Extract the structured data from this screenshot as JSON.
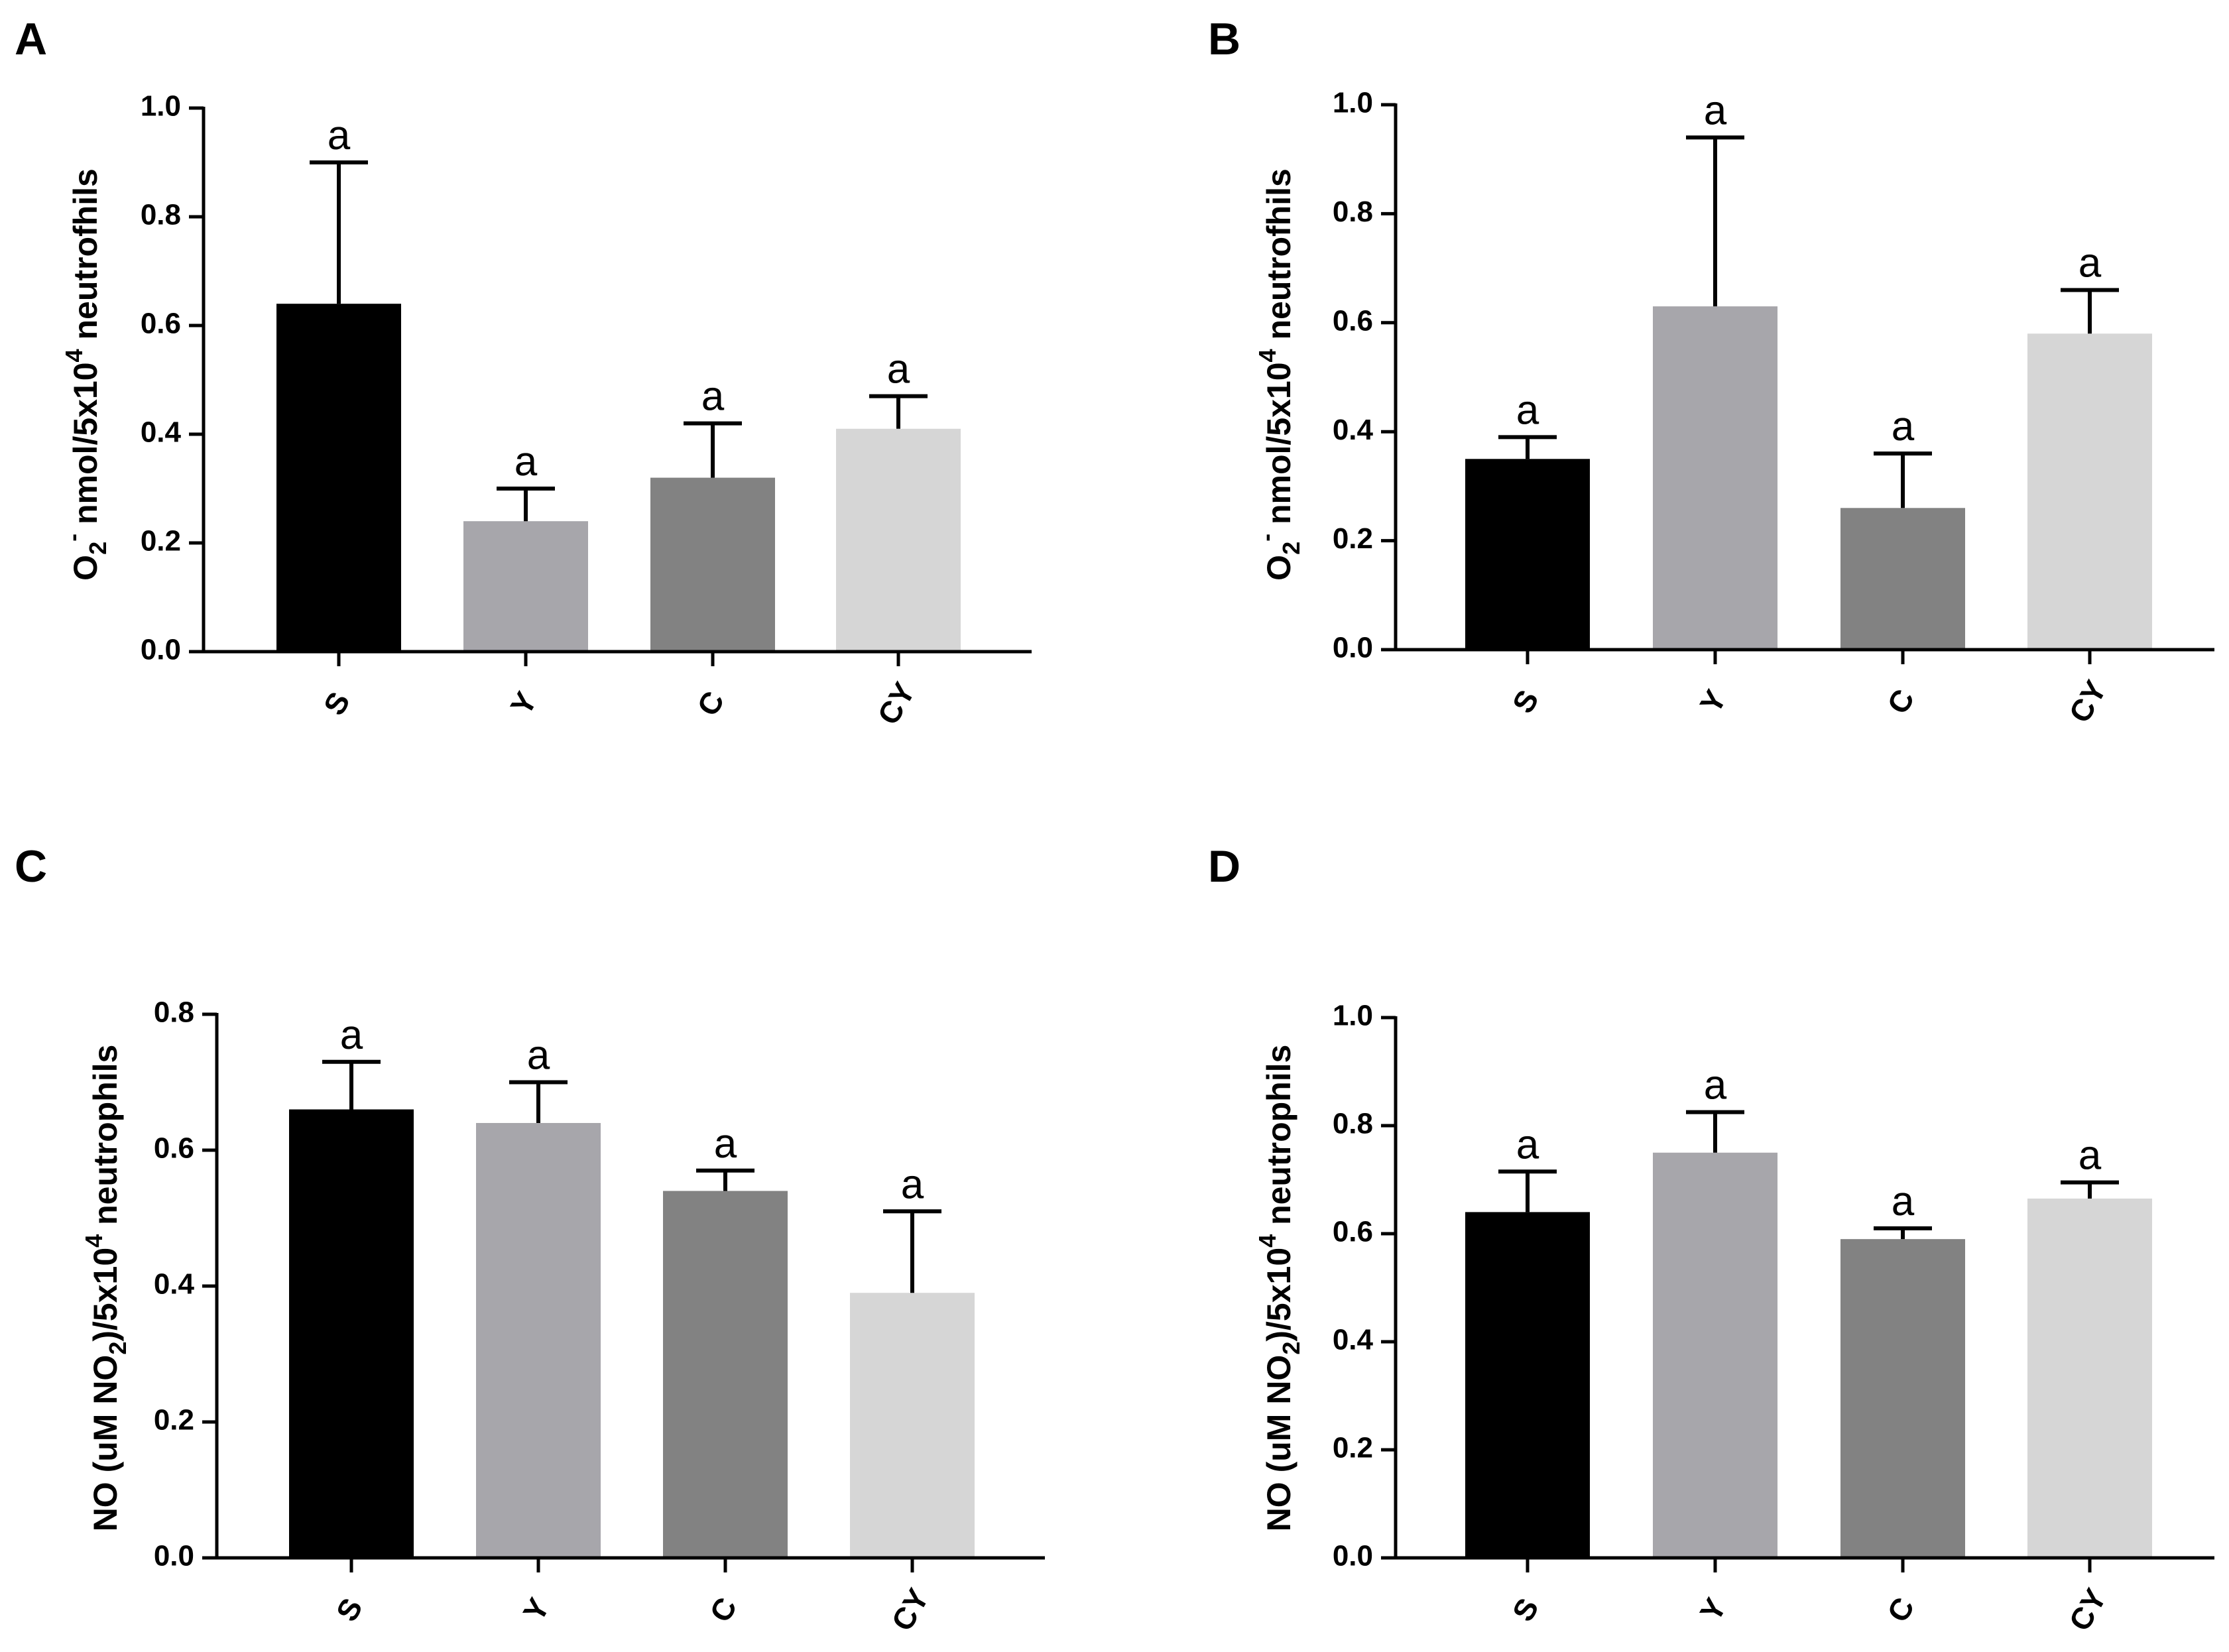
{
  "figure_title": "",
  "chart_data": [
    {
      "panel_label": "A",
      "type": "bar",
      "categories": [
        "S",
        "Y",
        "C",
        "CY"
      ],
      "values": [
        0.64,
        0.24,
        0.32,
        0.41
      ],
      "errors": [
        0.26,
        0.06,
        0.1,
        0.06
      ],
      "significance": [
        "a",
        "a",
        "a",
        "a"
      ],
      "bar_colors": [
        "#000000",
        "#a7a6ab",
        "#828282",
        "#d6d6d6"
      ],
      "ylabel": {
        "pre": "O",
        "sub": "2",
        "sup": "-",
        "mid": " nmol/5x10",
        "sup2": "4",
        "post": " neutrofhils"
      },
      "ylim": [
        0,
        1.0
      ],
      "yticks": [
        "0.0",
        "0.2",
        "0.4",
        "0.6",
        "0.8",
        "1.0"
      ],
      "xlabel": ""
    },
    {
      "panel_label": "B",
      "type": "bar",
      "categories": [
        "S",
        "Y",
        "C",
        "CY"
      ],
      "values": [
        0.35,
        0.63,
        0.26,
        0.58
      ],
      "errors": [
        0.04,
        0.31,
        0.1,
        0.08
      ],
      "significance": [
        "a",
        "a",
        "a",
        "a"
      ],
      "bar_colors": [
        "#000000",
        "#a7a6ab",
        "#828282",
        "#d6d6d6"
      ],
      "ylabel": {
        "pre": "O",
        "sub": "2",
        "sup": "-",
        "mid": " nmol/5x10",
        "sup2": "4",
        "post": " neutrofhils"
      },
      "ylim": [
        0,
        1.0
      ],
      "yticks": [
        "0.0",
        "0.2",
        "0.4",
        "0.6",
        "0.8",
        "1.0"
      ],
      "xlabel": ""
    },
    {
      "panel_label": "C",
      "type": "bar",
      "categories": [
        "S",
        "Y",
        "C",
        "CY"
      ],
      "values": [
        0.66,
        0.64,
        0.54,
        0.39
      ],
      "errors": [
        0.07,
        0.06,
        0.03,
        0.12
      ],
      "significance": [
        "a",
        "a",
        "a",
        "a"
      ],
      "bar_colors": [
        "#000000",
        "#a7a6ab",
        "#828282",
        "#d6d6d6"
      ],
      "ylabel": {
        "pre": "NO (uM NO",
        "sub": "2",
        "sup": "",
        "mid": ")/5x10",
        "sup2": "4",
        "post": " neutrophils"
      },
      "ylim": [
        0,
        0.8
      ],
      "yticks": [
        "0.0",
        "0.2",
        "0.4",
        "0.6",
        "0.8"
      ],
      "xlabel": ""
    },
    {
      "panel_label": "D",
      "type": "bar",
      "categories": [
        "S",
        "Y",
        "C",
        "CY"
      ],
      "values": [
        0.64,
        0.75,
        0.59,
        0.665
      ],
      "errors": [
        0.075,
        0.075,
        0.02,
        0.03
      ],
      "significance": [
        "a",
        "a",
        "a",
        "a"
      ],
      "bar_colors": [
        "#000000",
        "#a7a6ab",
        "#828282",
        "#d6d6d6"
      ],
      "ylabel": {
        "pre": "NO (uM NO",
        "sub": "2",
        "sup": "",
        "mid": ")/5x10",
        "sup2": "4",
        "post": " neutrophils"
      },
      "ylim": [
        0,
        1.0
      ],
      "yticks": [
        "0.0",
        "0.2",
        "0.4",
        "0.6",
        "0.8",
        "1.0"
      ],
      "xlabel": ""
    }
  ]
}
